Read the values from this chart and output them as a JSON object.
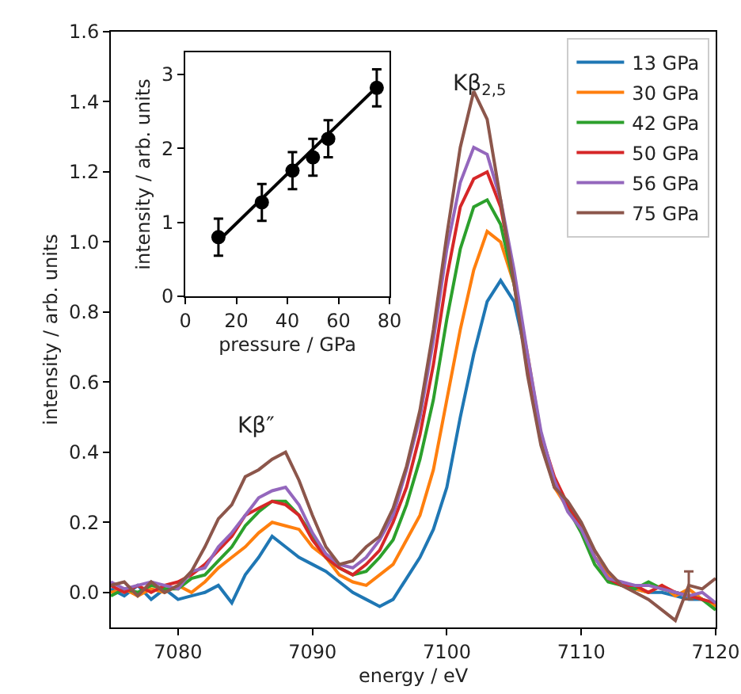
{
  "chart_data": [
    {
      "type": "line",
      "xlabel": "energy / eV",
      "ylabel": "intensity / arb. units",
      "xlim": [
        7075,
        7120
      ],
      "ylim": [
        -0.1,
        1.6
      ],
      "xticks": [
        7080,
        7090,
        7100,
        7110,
        7120
      ],
      "yticks": [
        {
          "value": 0,
          "label": "0.0"
        },
        0.2,
        0.4,
        0.6,
        0.8,
        {
          "value": 1,
          "label": "1.0"
        },
        1.2,
        1.4,
        1.6
      ],
      "grid": false,
      "legend": "top right",
      "annotations": [
        "Kβ$_{2,5}$",
        "Kβ″"
      ],
      "x": [
        7075,
        7076,
        7077,
        7078,
        7079,
        7080,
        7081,
        7082,
        7083,
        7084,
        7085,
        7086,
        7087,
        7088,
        7089,
        7090,
        7091,
        7092,
        7093,
        7094,
        7095,
        7096,
        7097,
        7098,
        7099,
        7100,
        7101,
        7102,
        7103,
        7104,
        7105,
        7106,
        7107,
        7108,
        7109,
        7110,
        7111,
        7112,
        7113,
        7114,
        7115,
        7116,
        7117,
        7118,
        7119,
        7120
      ],
      "series": [
        {
          "name": "13 GPa",
          "color": "#1f77b4",
          "values": [
            0.01,
            -0.01,
            0.02,
            -0.02,
            0.01,
            -0.02,
            -0.01,
            0.0,
            0.02,
            -0.03,
            0.05,
            0.1,
            0.16,
            0.13,
            0.1,
            0.08,
            0.06,
            0.03,
            0.0,
            -0.02,
            -0.04,
            -0.02,
            0.04,
            0.1,
            0.18,
            0.3,
            0.5,
            0.68,
            0.83,
            0.89,
            0.83,
            0.66,
            0.45,
            0.3,
            0.25,
            0.18,
            0.1,
            0.05,
            0.02,
            0.01,
            0.0,
            0.0,
            -0.01,
            -0.02,
            -0.02,
            -0.04
          ]
        },
        {
          "name": "30 GPa",
          "color": "#ff7f0e",
          "values": [
            0.0,
            0.01,
            -0.01,
            0.01,
            0.0,
            0.02,
            0.0,
            0.03,
            0.07,
            0.1,
            0.13,
            0.17,
            0.2,
            0.19,
            0.18,
            0.13,
            0.1,
            0.05,
            0.03,
            0.02,
            0.05,
            0.08,
            0.15,
            0.22,
            0.35,
            0.55,
            0.75,
            0.92,
            1.03,
            1.0,
            0.88,
            0.68,
            0.45,
            0.3,
            0.24,
            0.18,
            0.1,
            0.05,
            0.02,
            0.01,
            0.0,
            0.02,
            -0.01,
            0.01,
            -0.02,
            -0.04
          ]
        },
        {
          "name": "42 GPa",
          "color": "#2ca02c",
          "values": [
            -0.01,
            0.01,
            0.0,
            0.02,
            0.01,
            0.01,
            0.04,
            0.05,
            0.09,
            0.13,
            0.19,
            0.23,
            0.26,
            0.26,
            0.22,
            0.16,
            0.1,
            0.07,
            0.05,
            0.06,
            0.1,
            0.15,
            0.25,
            0.38,
            0.55,
            0.78,
            0.98,
            1.1,
            1.12,
            1.05,
            0.88,
            0.65,
            0.45,
            0.32,
            0.24,
            0.17,
            0.08,
            0.03,
            0.02,
            0.01,
            0.03,
            0.01,
            0.0,
            -0.01,
            -0.02,
            -0.05
          ]
        },
        {
          "name": "50 GPa",
          "color": "#d62728",
          "values": [
            0.02,
            0.0,
            0.02,
            0.0,
            0.02,
            0.03,
            0.05,
            0.08,
            0.12,
            0.16,
            0.22,
            0.24,
            0.26,
            0.25,
            0.22,
            0.15,
            0.1,
            0.07,
            0.05,
            0.08,
            0.12,
            0.2,
            0.3,
            0.45,
            0.65,
            0.9,
            1.1,
            1.18,
            1.2,
            1.1,
            0.9,
            0.66,
            0.45,
            0.33,
            0.25,
            0.19,
            0.1,
            0.04,
            0.02,
            0.02,
            0.0,
            0.02,
            0.0,
            -0.01,
            -0.02,
            -0.03
          ]
        },
        {
          "name": "56 GPa",
          "color": "#9467bd",
          "values": [
            0.03,
            0.01,
            0.02,
            0.03,
            0.02,
            0.01,
            0.06,
            0.07,
            0.13,
            0.17,
            0.22,
            0.27,
            0.29,
            0.3,
            0.25,
            0.17,
            0.11,
            0.08,
            0.07,
            0.1,
            0.15,
            0.22,
            0.35,
            0.5,
            0.72,
            0.98,
            1.17,
            1.27,
            1.25,
            1.12,
            0.92,
            0.68,
            0.46,
            0.32,
            0.23,
            0.18,
            0.1,
            0.04,
            0.03,
            0.02,
            0.02,
            0.01,
            0.0,
            -0.01,
            0.0,
            -0.03
          ]
        },
        {
          "name": "75 GPa",
          "color": "#8c564b",
          "values": [
            0.02,
            0.03,
            -0.01,
            0.03,
            0.0,
            0.02,
            0.06,
            0.13,
            0.21,
            0.25,
            0.33,
            0.35,
            0.38,
            0.4,
            0.32,
            0.22,
            0.13,
            0.08,
            0.09,
            0.13,
            0.16,
            0.24,
            0.36,
            0.52,
            0.75,
            1.02,
            1.27,
            1.43,
            1.35,
            1.12,
            0.88,
            0.62,
            0.42,
            0.3,
            0.26,
            0.2,
            0.12,
            0.06,
            0.02,
            0.0,
            -0.02,
            -0.05,
            -0.08,
            0.02,
            0.01,
            0.04
          ],
          "errors": [
            null,
            null,
            null,
            null,
            null,
            null,
            null,
            null,
            null,
            null,
            null,
            null,
            null,
            null,
            null,
            null,
            null,
            null,
            null,
            null,
            null,
            null,
            null,
            null,
            null,
            null,
            null,
            null,
            null,
            null,
            null,
            null,
            null,
            null,
            null,
            null,
            null,
            null,
            null,
            null,
            null,
            null,
            null,
            0.04,
            null,
            null
          ]
        }
      ]
    },
    {
      "type": "scatter",
      "xlabel": "pressure / GPa",
      "ylabel": "intensity / arb. units",
      "xlim": [
        0,
        80
      ],
      "ylim": [
        0,
        3.3
      ],
      "xticks": [
        0,
        20,
        40,
        60,
        80
      ],
      "yticks": [
        0,
        1,
        2,
        3
      ],
      "grid": false,
      "legend": false,
      "x": [
        13,
        30,
        42,
        50,
        56,
        75
      ],
      "series": [
        {
          "color": "#000000",
          "marker": "circle",
          "values": [
            0.8,
            1.27,
            1.7,
            1.88,
            2.13,
            2.82
          ],
          "errors": [
            0.25,
            0.25,
            0.25,
            0.25,
            0.25,
            0.25
          ]
        },
        {
          "type": "line",
          "color": "#000000",
          "marker": "none",
          "x": [
            13,
            75
          ],
          "values": [
            0.75,
            2.83
          ]
        }
      ]
    }
  ]
}
